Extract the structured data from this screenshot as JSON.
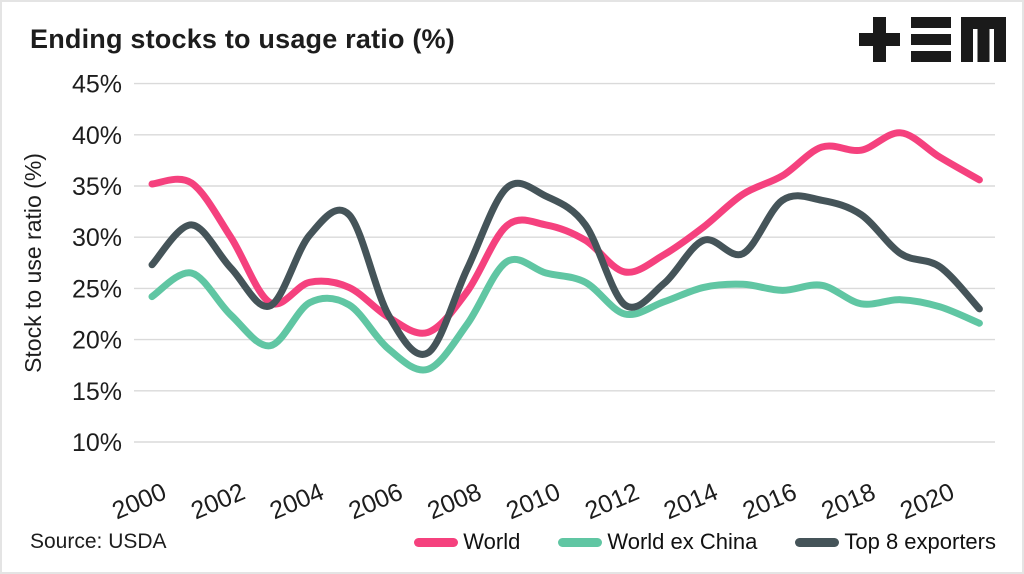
{
  "header": {
    "title": "Ending stocks to usage ratio (%)",
    "logo_icon": "tem-logo"
  },
  "footer": {
    "source": "Source: USDA"
  },
  "colors": {
    "background": "#FFFFFF",
    "grid": "#DADADA",
    "text": "#1D1D1D",
    "world": "#F5417E",
    "world_ex_china": "#60C6A3",
    "top8_exporters": "#455459"
  },
  "chart_data": {
    "type": "line",
    "title": "Ending stocks to usage ratio (%)",
    "xlabel": "",
    "ylabel": "Stock to use ratio (%)",
    "ylim": [
      10,
      45
    ],
    "y_tick_labels": [
      "45%",
      "40%",
      "35%",
      "30%",
      "25%",
      "20%",
      "15%",
      "10%"
    ],
    "x_tick_labels": [
      "2000",
      "2002",
      "2004",
      "2006",
      "2008",
      "2010",
      "2012",
      "2014",
      "2016",
      "2018",
      "2020"
    ],
    "grid": "horizontal",
    "legend_position": "bottom",
    "x": [
      2000,
      2001,
      2002,
      2003,
      2004,
      2005,
      2006,
      2007,
      2008,
      2009,
      2010,
      2011,
      2012,
      2013,
      2014,
      2015,
      2016,
      2017,
      2018,
      2019,
      2020,
      2021
    ],
    "series": [
      {
        "name": "World",
        "color": "#F5417E",
        "values": [
          35.2,
          35.3,
          30.0,
          23.6,
          25.6,
          25.1,
          22.2,
          20.7,
          24.7,
          31.1,
          31.2,
          29.7,
          26.6,
          28.3,
          31.0,
          34.2,
          36.0,
          38.8,
          38.5,
          40.2,
          37.8,
          35.6
        ]
      },
      {
        "name": "World ex China",
        "color": "#60C6A3",
        "values": [
          24.2,
          26.5,
          22.4,
          19.4,
          23.6,
          23.4,
          19.1,
          17.1,
          21.5,
          27.6,
          26.5,
          25.6,
          22.5,
          23.7,
          25.1,
          25.4,
          24.8,
          25.3,
          23.5,
          23.9,
          23.2,
          21.6
        ]
      },
      {
        "name": "Top 8 exporters",
        "color": "#455459",
        "values": [
          27.3,
          31.2,
          27.0,
          23.3,
          30.2,
          32.2,
          22.4,
          18.7,
          26.9,
          34.8,
          34.0,
          31.2,
          23.4,
          25.5,
          29.7,
          28.4,
          33.6,
          33.6,
          32.2,
          28.4,
          27.1,
          23.0
        ]
      }
    ]
  }
}
